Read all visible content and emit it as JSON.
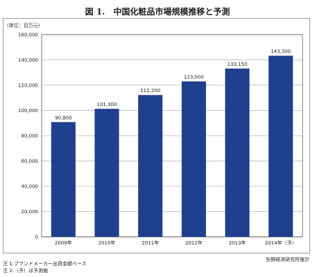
{
  "chart_data": {
    "type": "bar",
    "title": "図 1.　中国化粧品市場規模推移と予測",
    "unit_label": "(単位：百万元)",
    "categories": [
      "2009年",
      "2010年",
      "2011年",
      "2012年",
      "2013年",
      "2014年（予）"
    ],
    "values": [
      90800,
      101300,
      112200,
      123000,
      133150,
      143300
    ],
    "value_labels": [
      "90,800",
      "101,300",
      "112,200",
      "123,000",
      "133,150",
      "143,300"
    ],
    "ylim": [
      0,
      160000
    ],
    "yticks": [
      0,
      20000,
      40000,
      60000,
      80000,
      100000,
      120000,
      140000,
      160000
    ],
    "ytick_labels": [
      "0",
      "20,000",
      "40,000",
      "60,000",
      "80,000",
      "100,000",
      "120,000",
      "140,000",
      "160,000"
    ],
    "grid": true,
    "bar_color": "#1f3f8f",
    "notes": [
      "注 1:ブランドメーカー出荷金額ベース",
      "注 2:（予）は予測値"
    ],
    "source": "矢野経済研究所推計"
  }
}
